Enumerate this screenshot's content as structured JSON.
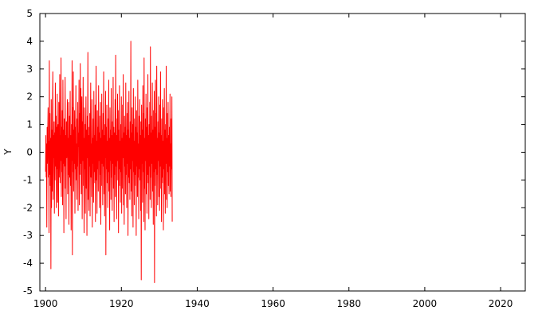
{
  "chart_data": {
    "type": "line",
    "title": "",
    "xlabel": "",
    "ylabel": "Y",
    "xlim": [
      1898.5,
      2026.5
    ],
    "ylim": [
      -5,
      5
    ],
    "x_ticks": [
      1900,
      1920,
      1940,
      1960,
      1980,
      2000,
      2020
    ],
    "y_ticks": [
      -5,
      -4,
      -3,
      -2,
      -1,
      0,
      1,
      2,
      3,
      4,
      5
    ],
    "grid": false,
    "legend": "none",
    "series": [
      {
        "color": "#ff0000",
        "x_start": 1900.0,
        "x_step": 0.0833,
        "values": [
          -0.7,
          0.6,
          -0.9,
          0.3,
          -2.7,
          0.9,
          -0.4,
          0.7,
          1.6,
          -0.9,
          0.4,
          -2.9,
          3.3,
          -0.8,
          1.4,
          -1.2,
          0.5,
          -4.2,
          1.9,
          -2.0,
          0.8,
          -1.4,
          1.6,
          2.9,
          -1.7,
          0.6,
          -0.2,
          1.1,
          -2.2,
          0.7,
          -1.0,
          2.5,
          -0.5,
          1.3,
          -2.0,
          0.9,
          -0.6,
          2.1,
          -1.8,
          0.4,
          1.0,
          -2.3,
          1.8,
          -0.9,
          0.2,
          2.8,
          -1.1,
          0.6,
          -0.3,
          3.4,
          -1.6,
          0.9,
          -0.7,
          1.5,
          -1.9,
          2.6,
          -0.4,
          0.8,
          -2.9,
          1.2,
          -0.5,
          0.3,
          2.7,
          -1.3,
          0.6,
          -2.4,
          1.1,
          -0.2,
          0.7,
          1.9,
          -1.5,
          0.5,
          -0.8,
          1.8,
          -2.6,
          0.4,
          1.3,
          -0.9,
          2.2,
          -1.2,
          0.6,
          -2.8,
          1.0,
          -0.3,
          3.3,
          -3.7,
          1.6,
          -0.7,
          2.9,
          -1.4,
          0.8,
          -0.4,
          1.5,
          -2.2,
          0.9,
          -0.6,
          2.4,
          -1.0,
          0.3,
          -1.7,
          1.2,
          -0.5,
          1.8,
          -2.1,
          0.7,
          0.2,
          2.6,
          -1.9,
          1.4,
          -0.8,
          3.2,
          -0.4,
          2.3,
          -1.5,
          0.9,
          2.0,
          -2.4,
          1.1,
          -0.3,
          2.7,
          -1.2,
          0.5,
          -2.9,
          1.6,
          -0.6,
          1.0,
          -2.2,
          0.4,
          2.0,
          -1.3,
          0.8,
          -3.0,
          1.3,
          -0.2,
          3.6,
          -1.7,
          0.6,
          -2.1,
          0.9,
          -0.5,
          1.4,
          -2.3,
          0.7,
          2.5,
          -0.9,
          0.3,
          -1.6,
          1.9,
          -2.7,
          0.5,
          -0.4,
          1.2,
          -1.8,
          2.2,
          -0.7,
          0.6,
          -1.1,
          1.7,
          -2.5,
          0.8,
          3.1,
          -1.0,
          0.4,
          -2.2,
          1.5,
          -0.6,
          0.9,
          -1.4,
          2.4,
          -0.3,
          0.7,
          -2.0,
          1.3,
          -0.8,
          1.8,
          -2.6,
          0.5,
          -1.2,
          2.1,
          -0.4,
          0.8,
          -1.9,
          1.4,
          -0.5,
          2.9,
          -1.5,
          0.6,
          -2.3,
          1.0,
          -0.2,
          2.2,
          -3.7,
          0.9,
          -0.6,
          1.7,
          -1.1,
          0.4,
          -2.0,
          1.2,
          -0.7,
          2.6,
          -1.4,
          0.5,
          -2.8,
          1.6,
          -0.3,
          0.8,
          -1.7,
          2.3,
          -0.9,
          0.6,
          -2.1,
          1.1,
          -0.4,
          2.7,
          -1.3,
          0.9,
          -2.5,
          0.7,
          -0.8,
          1.9,
          -1.6,
          3.5,
          -0.5,
          1.2,
          -2.4,
          0.6,
          -1.0,
          2.1,
          -0.3,
          1.5,
          -2.9,
          0.8,
          -0.6,
          2.4,
          -1.2,
          0.4,
          -1.8,
          1.0,
          -0.7,
          2.0,
          -2.2,
          0.5,
          -1.3,
          1.7,
          -0.2,
          2.8,
          -1.9,
          0.7,
          -2.6,
          1.3,
          -0.5,
          0.9,
          -1.5,
          2.5,
          -0.8,
          0.6,
          -2.0,
          1.4,
          -0.4,
          1.8,
          -3.0,
          0.8,
          -0.9,
          2.2,
          -1.1,
          0.5,
          -1.7,
          1.1,
          -0.6,
          4.0,
          -1.4,
          0.7,
          -2.3,
          1.6,
          -0.3,
          1.0,
          -2.7,
          2.3,
          -0.7,
          0.4,
          -1.9,
          1.2,
          -0.8,
          2.0,
          -1.2,
          0.9,
          -3.0,
          1.5,
          -0.5,
          0.7,
          -1.6,
          2.6,
          -0.9,
          0.3,
          -2.4,
          1.3,
          -0.6,
          1.9,
          -1.0,
          0.6,
          -2.1,
          1.1,
          -4.6,
          1.7,
          -0.4,
          0.8,
          -1.8,
          2.4,
          -0.7,
          1.4,
          -2.5,
          3.4,
          -1.3,
          0.5,
          -2.8,
          1.2,
          -0.3,
          2.1,
          -1.5,
          0.9,
          -2.2,
          1.6,
          -0.8,
          2.8,
          -1.1,
          0.6,
          -2.4,
          1.0,
          -0.5,
          1.8,
          -1.7,
          3.8,
          -0.9,
          0.7,
          -2.0,
          1.3,
          -0.4,
          2.5,
          -1.4,
          0.8,
          -2.6,
          1.5,
          -0.7,
          2.2,
          -4.7,
          0.9,
          -1.2,
          2.6,
          -0.6,
          1.4,
          -2.3,
          3.1,
          -0.8,
          0.5,
          -1.9,
          1.1,
          -0.3,
          2.0,
          -1.6,
          0.7,
          -2.1,
          1.7,
          -0.5,
          2.9,
          -1.3,
          0.6,
          -2.5,
          1.2,
          -0.9,
          1.9,
          -1.1,
          0.4,
          -2.8,
          1.6,
          -0.6,
          2.3,
          -1.5,
          0.8,
          -2.2,
          1.0,
          -0.4,
          3.1,
          -1.7,
          0.5,
          -2.0,
          1.4,
          -0.7,
          1.8,
          -1.2,
          0.6,
          -1.5,
          0.9,
          -0.5,
          2.1,
          -1.4,
          0.3,
          -1.6,
          1.2,
          -0.6,
          2.0,
          -2.5
        ]
      }
    ]
  }
}
